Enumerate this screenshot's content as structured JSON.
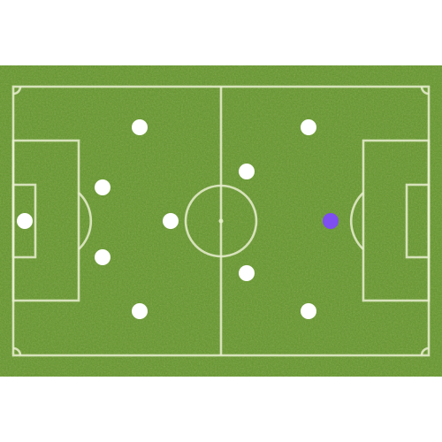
{
  "pitch": {
    "grass_color": "#679b35",
    "line_color": "#e9efd0"
  },
  "formation": {
    "marker_default_color": "#ffffff",
    "marker_selected_color": "#7e4ef0",
    "players": [
      {
        "role": "goalkeeper",
        "selected": false
      },
      {
        "role": "defender",
        "selected": false
      },
      {
        "role": "defender",
        "selected": false
      },
      {
        "role": "defender",
        "selected": false
      },
      {
        "role": "defender",
        "selected": false
      },
      {
        "role": "midfielder",
        "selected": false
      },
      {
        "role": "midfielder",
        "selected": false
      },
      {
        "role": "midfielder",
        "selected": false
      },
      {
        "role": "forward",
        "selected": false
      },
      {
        "role": "forward",
        "selected": false
      },
      {
        "role": "forward",
        "selected": true
      }
    ]
  }
}
